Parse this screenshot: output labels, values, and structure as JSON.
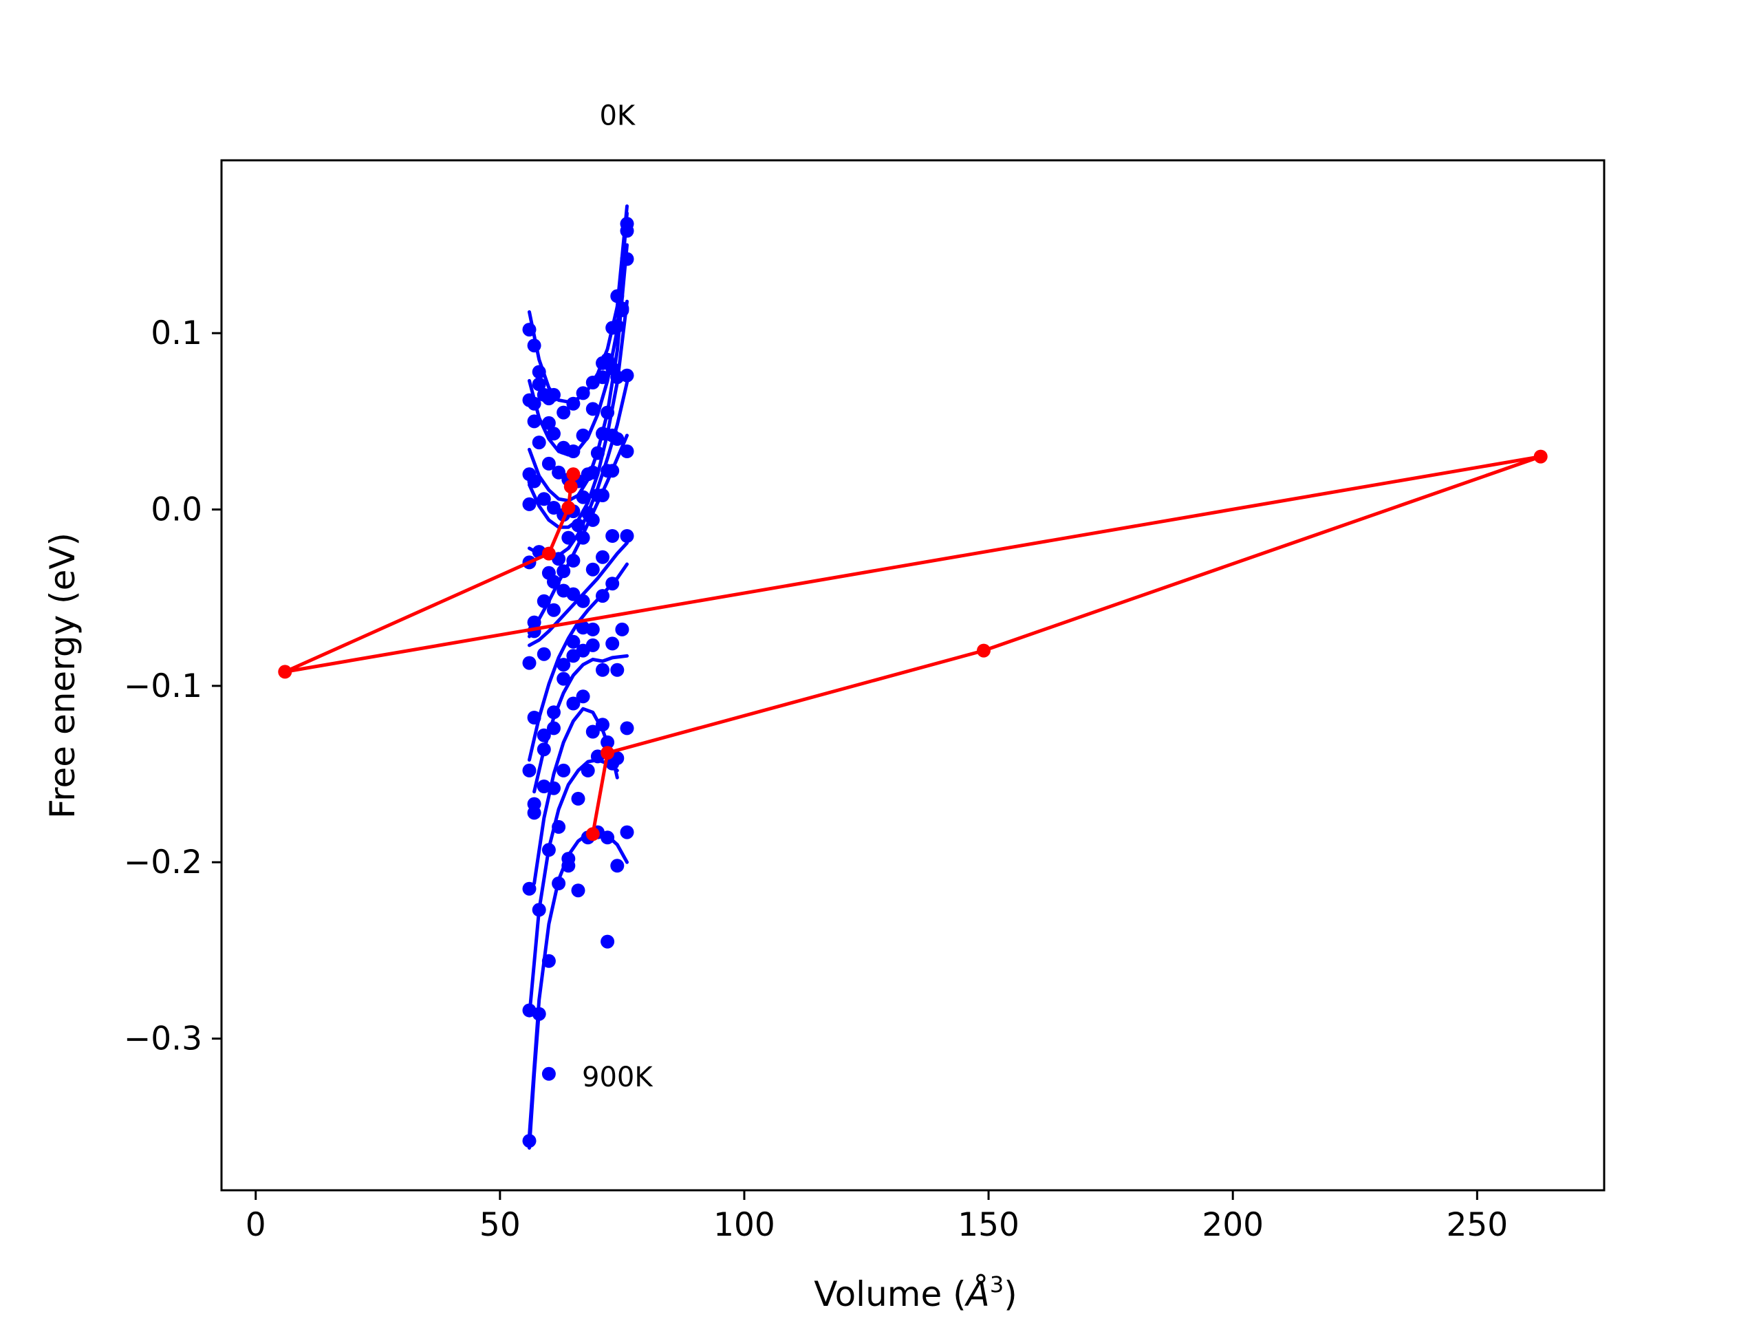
{
  "chart_data": {
    "type": "scatter",
    "title": "",
    "xlabel": "Volume (",
    "xlabel_unit": "Å",
    "xlabel_exp": "3",
    "xlabel_close": ")",
    "ylabel": "Free energy (eV)",
    "xlim": [
      -7,
      276
    ],
    "ylim": [
      -0.386,
      0.198
    ],
    "grid": false,
    "legend": "none",
    "colors": {
      "fit": "#0000ff",
      "points": "#0000ff",
      "minima": "#ff0000"
    },
    "x_ticks": [
      {
        "value": 0,
        "label": "0"
      },
      {
        "value": 50,
        "label": "50"
      },
      {
        "value": 100,
        "label": "100"
      },
      {
        "value": 150,
        "label": "150"
      },
      {
        "value": 200,
        "label": "200"
      },
      {
        "value": 250,
        "label": "250"
      }
    ],
    "y_ticks": [
      {
        "value": 0.1,
        "label": "0.1"
      },
      {
        "value": 0.0,
        "label": "0.0"
      },
      {
        "value": -0.1,
        "label": "−0.1"
      },
      {
        "value": -0.2,
        "label": "−0.2"
      },
      {
        "value": -0.3,
        "label": "−0.3"
      }
    ],
    "annotations": [
      {
        "text": "0K",
        "x": 74,
        "y": 0.218
      },
      {
        "text": "900K",
        "x": 74,
        "y": -0.327
      }
    ],
    "series": [
      {
        "points": [
          [
            56,
            0.102
          ],
          [
            57,
            0.093
          ],
          [
            58,
            0.078
          ],
          [
            59,
            0.065
          ],
          [
            60,
            0.063
          ],
          [
            61,
            0.065
          ],
          [
            63,
            0.055
          ],
          [
            65,
            0.06
          ],
          [
            67,
            0.066
          ],
          [
            69,
            0.072
          ],
          [
            71,
            0.083
          ],
          [
            72,
            0.085
          ],
          [
            73,
            0.103
          ],
          [
            74,
            0.121
          ],
          [
            76,
            0.162
          ]
        ],
        "fit": [
          [
            56,
            0.112
          ],
          [
            58,
            0.085
          ],
          [
            60,
            0.069
          ],
          [
            62,
            0.062
          ],
          [
            64,
            0.061
          ],
          [
            66,
            0.063
          ],
          [
            68,
            0.068
          ],
          [
            70,
            0.077
          ],
          [
            72,
            0.091
          ],
          [
            74,
            0.115
          ],
          [
            76,
            0.172
          ]
        ]
      },
      {
        "points": [
          [
            56,
            0.062
          ],
          [
            57,
            0.06
          ],
          [
            58,
            0.071
          ],
          [
            60,
            0.049
          ],
          [
            61,
            0.043
          ],
          [
            63,
            0.035
          ],
          [
            65,
            0.033
          ],
          [
            67,
            0.042
          ],
          [
            69,
            0.057
          ],
          [
            71,
            0.075
          ],
          [
            73,
            0.08
          ],
          [
            74,
            0.104
          ],
          [
            75,
            0.114
          ],
          [
            76,
            0.158
          ]
        ],
        "fit": [
          [
            56,
            0.073
          ],
          [
            58,
            0.052
          ],
          [
            60,
            0.04
          ],
          [
            62,
            0.033
          ],
          [
            64,
            0.031
          ],
          [
            66,
            0.034
          ],
          [
            68,
            0.041
          ],
          [
            70,
            0.054
          ],
          [
            72,
            0.073
          ],
          [
            74,
            0.102
          ],
          [
            76,
            0.168
          ]
        ]
      },
      {
        "points": [
          [
            56,
            0.02
          ],
          [
            57,
            0.05
          ],
          [
            58,
            0.038
          ],
          [
            60,
            0.026
          ],
          [
            62,
            0.021
          ],
          [
            64,
            0.017
          ],
          [
            66,
            0.016
          ],
          [
            68,
            0.02
          ],
          [
            70,
            0.032
          ],
          [
            72,
            0.055
          ],
          [
            74,
            0.075
          ],
          [
            76,
            0.142
          ]
        ],
        "fit": [
          [
            56,
            0.034
          ],
          [
            58,
            0.019
          ],
          [
            60,
            0.011
          ],
          [
            62,
            0.006
          ],
          [
            64,
            0.005
          ],
          [
            66,
            0.008
          ],
          [
            68,
            0.017
          ],
          [
            70,
            0.033
          ],
          [
            72,
            0.055
          ],
          [
            74,
            0.09
          ],
          [
            76,
            0.15
          ]
        ]
      },
      {
        "points": [
          [
            56,
            0.003
          ],
          [
            57,
            0.016
          ],
          [
            59,
            0.006
          ],
          [
            61,
            0.001
          ],
          [
            63,
            -0.003
          ],
          [
            65,
            -0.001
          ],
          [
            67,
            0.007
          ],
          [
            69,
            0.021
          ],
          [
            71,
            0.043
          ],
          [
            73,
            0.042
          ],
          [
            75,
            0.113
          ]
        ],
        "fit": [
          [
            56,
            0.014
          ],
          [
            58,
            0.002
          ],
          [
            60,
            -0.006
          ],
          [
            62,
            -0.01
          ],
          [
            64,
            -0.01
          ],
          [
            66,
            -0.006
          ],
          [
            68,
            0.004
          ],
          [
            70,
            0.02
          ],
          [
            72,
            0.043
          ],
          [
            74,
            0.072
          ],
          [
            76,
            0.118
          ]
        ]
      },
      {
        "points": [
          [
            56,
            -0.03
          ],
          [
            58,
            -0.024
          ],
          [
            60,
            -0.036
          ],
          [
            62,
            -0.028
          ],
          [
            64,
            -0.016
          ],
          [
            66,
            -0.009
          ],
          [
            68,
            -0.002
          ],
          [
            70,
            0.008
          ],
          [
            72,
            0.022
          ],
          [
            74,
            0.04
          ],
          [
            76,
            0.076
          ]
        ],
        "fit": [
          [
            56,
            -0.022
          ],
          [
            58,
            -0.025
          ],
          [
            60,
            -0.027
          ],
          [
            62,
            -0.026
          ],
          [
            64,
            -0.022
          ],
          [
            66,
            -0.014
          ],
          [
            68,
            -0.002
          ],
          [
            70,
            0.012
          ],
          [
            72,
            0.029
          ],
          [
            74,
            0.048
          ],
          [
            76,
            0.072
          ]
        ]
      },
      {
        "points": [
          [
            57,
            -0.064
          ],
          [
            59,
            -0.052
          ],
          [
            61,
            -0.041
          ],
          [
            63,
            -0.035
          ],
          [
            65,
            -0.029
          ],
          [
            67,
            -0.016
          ],
          [
            69,
            -0.006
          ],
          [
            71,
            0.008
          ],
          [
            73,
            0.022
          ],
          [
            76,
            0.033
          ]
        ],
        "fit": [
          [
            56,
            -0.072
          ],
          [
            58,
            -0.062
          ],
          [
            60,
            -0.052
          ],
          [
            62,
            -0.041
          ],
          [
            64,
            -0.031
          ],
          [
            66,
            -0.02
          ],
          [
            68,
            -0.008
          ],
          [
            70,
            0.004
          ],
          [
            72,
            0.016
          ],
          [
            74,
            0.029
          ],
          [
            76,
            0.042
          ]
        ]
      },
      {
        "points": [
          [
            56,
            -0.087
          ],
          [
            57,
            -0.069
          ],
          [
            59,
            -0.082
          ],
          [
            61,
            -0.057
          ],
          [
            63,
            -0.046
          ],
          [
            65,
            -0.048
          ],
          [
            67,
            -0.052
          ],
          [
            69,
            -0.034
          ],
          [
            71,
            -0.027
          ],
          [
            73,
            -0.015
          ],
          [
            76,
            -0.015
          ]
        ],
        "fit": [
          [
            56,
            -0.077
          ],
          [
            58,
            -0.074
          ],
          [
            60,
            -0.069
          ],
          [
            62,
            -0.063
          ],
          [
            64,
            -0.057
          ],
          [
            66,
            -0.051
          ],
          [
            68,
            -0.045
          ],
          [
            70,
            -0.039
          ],
          [
            72,
            -0.032
          ],
          [
            74,
            -0.025
          ],
          [
            76,
            -0.019
          ]
        ]
      },
      {
        "points": [
          [
            57,
            -0.118
          ],
          [
            59,
            -0.136
          ],
          [
            61,
            -0.115
          ],
          [
            63,
            -0.096
          ],
          [
            65,
            -0.075
          ],
          [
            67,
            -0.067
          ],
          [
            69,
            -0.068
          ],
          [
            71,
            -0.049
          ],
          [
            73,
            -0.042
          ],
          [
            75,
            -0.068
          ]
        ],
        "fit": [
          [
            56,
            -0.142
          ],
          [
            58,
            -0.118
          ],
          [
            60,
            -0.099
          ],
          [
            62,
            -0.084
          ],
          [
            64,
            -0.073
          ],
          [
            66,
            -0.064
          ],
          [
            68,
            -0.057
          ],
          [
            70,
            -0.051
          ],
          [
            72,
            -0.045
          ],
          [
            74,
            -0.039
          ],
          [
            76,
            -0.031
          ]
        ]
      },
      {
        "points": [
          [
            56,
            -0.148
          ],
          [
            57,
            -0.167
          ],
          [
            59,
            -0.128
          ],
          [
            61,
            -0.124
          ],
          [
            63,
            -0.088
          ],
          [
            65,
            -0.083
          ],
          [
            67,
            -0.08
          ],
          [
            69,
            -0.077
          ],
          [
            71,
            -0.091
          ],
          [
            73,
            -0.076
          ],
          [
            74,
            -0.091
          ]
        ],
        "fit": [
          [
            57,
            -0.16
          ],
          [
            59,
            -0.136
          ],
          [
            61,
            -0.118
          ],
          [
            63,
            -0.104
          ],
          [
            65,
            -0.094
          ],
          [
            67,
            -0.088
          ],
          [
            69,
            -0.085
          ],
          [
            71,
            -0.086
          ],
          [
            73,
            -0.084
          ],
          [
            76,
            -0.083
          ]
        ]
      },
      {
        "points": [
          [
            57,
            -0.172
          ],
          [
            59,
            -0.157
          ],
          [
            61,
            -0.158
          ],
          [
            63,
            -0.148
          ],
          [
            65,
            -0.11
          ],
          [
            67,
            -0.106
          ],
          [
            69,
            -0.126
          ],
          [
            71,
            -0.122
          ],
          [
            73,
            -0.144
          ],
          [
            76,
            -0.124
          ]
        ],
        "fit": [
          [
            57,
            -0.212
          ],
          [
            59,
            -0.175
          ],
          [
            61,
            -0.15
          ],
          [
            63,
            -0.132
          ],
          [
            65,
            -0.12
          ],
          [
            67,
            -0.113
          ],
          [
            69,
            -0.115
          ],
          [
            71,
            -0.125
          ],
          [
            73,
            -0.14
          ],
          [
            74,
            -0.152
          ]
        ]
      },
      {
        "points": [
          [
            56,
            -0.215
          ],
          [
            58,
            -0.227
          ],
          [
            60,
            -0.193
          ],
          [
            62,
            -0.18
          ],
          [
            64,
            -0.202
          ],
          [
            66,
            -0.164
          ],
          [
            68,
            -0.148
          ],
          [
            70,
            -0.14
          ],
          [
            72,
            -0.132
          ],
          [
            74,
            -0.141
          ]
        ],
        "fit": [
          [
            56,
            -0.287
          ],
          [
            58,
            -0.227
          ],
          [
            60,
            -0.192
          ],
          [
            62,
            -0.17
          ],
          [
            64,
            -0.156
          ],
          [
            66,
            -0.148
          ],
          [
            68,
            -0.143
          ],
          [
            70,
            -0.142
          ],
          [
            72,
            -0.144
          ],
          [
            74,
            -0.148
          ]
        ]
      },
      {
        "points": [
          [
            56,
            -0.284
          ],
          [
            58,
            -0.286
          ],
          [
            60,
            -0.256
          ],
          [
            62,
            -0.212
          ],
          [
            64,
            -0.198
          ],
          [
            66,
            -0.216
          ],
          [
            68,
            -0.186
          ],
          [
            70,
            -0.183
          ],
          [
            72,
            -0.186
          ],
          [
            74,
            -0.202
          ],
          [
            76,
            -0.183
          ]
        ],
        "fit": [
          [
            56,
            -0.355
          ],
          [
            58,
            -0.278
          ],
          [
            60,
            -0.235
          ],
          [
            62,
            -0.21
          ],
          [
            64,
            -0.196
          ],
          [
            66,
            -0.188
          ],
          [
            68,
            -0.184
          ],
          [
            70,
            -0.183
          ],
          [
            72,
            -0.185
          ],
          [
            74,
            -0.19
          ],
          [
            76,
            -0.2
          ]
        ]
      },
      {
        "points": [
          [
            56,
            -0.358
          ],
          [
            60,
            -0.32
          ],
          [
            72,
            -0.245
          ]
        ],
        "fit": [
          [
            56,
            -0.362
          ],
          [
            57,
            -0.32
          ],
          [
            58,
            -0.284
          ]
        ]
      }
    ],
    "minima": [
      {
        "x": 65,
        "y": 0.02
      },
      {
        "x": 64.5,
        "y": 0.013
      },
      {
        "x": 64,
        "y": 0.001
      },
      {
        "x": 60,
        "y": -0.025
      },
      {
        "x": 6,
        "y": -0.092
      },
      {
        "x": 263,
        "y": 0.03
      },
      {
        "x": 149,
        "y": -0.08
      },
      {
        "x": 72,
        "y": -0.138
      },
      {
        "x": 69,
        "y": -0.184
      }
    ]
  }
}
